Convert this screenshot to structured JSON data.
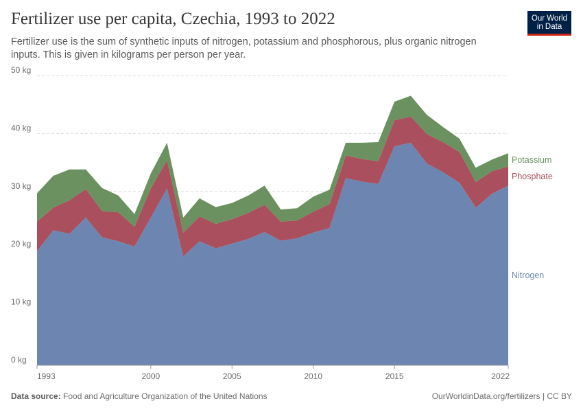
{
  "header": {
    "title": "Fertilizer use per capita, Czechia, 1993 to 2022",
    "subtitle": "Fertilizer use is the sum of synthetic inputs of nitrogen, potassium and phosphorous, plus organic nitrogen inputs. This is given in kilograms per person per year."
  },
  "logo": {
    "line1": "Our World",
    "line2": "in Data"
  },
  "footer": {
    "source_label": "Data source:",
    "source_text": "Food and Agriculture Organization of the United Nations",
    "url": "OurWorldinData.org/fertilizers | CC BY"
  },
  "colors": {
    "nitrogen": "#6d86b1",
    "phosphate": "#a94f5d",
    "potassium": "#6c9160",
    "grid": "#dddddd",
    "axis_text": "#6b6b6b"
  },
  "chart_data": {
    "type": "area",
    "stacked": true,
    "x": [
      1993,
      1994,
      1995,
      1996,
      1997,
      1998,
      1999,
      2000,
      2001,
      2002,
      2003,
      2004,
      2005,
      2006,
      2007,
      2008,
      2009,
      2010,
      2011,
      2012,
      2013,
      2014,
      2015,
      2016,
      2017,
      2018,
      2019,
      2020,
      2021,
      2022
    ],
    "xticks": [
      "1993",
      "2000",
      "2005",
      "2010",
      "2015",
      "2022"
    ],
    "ylim": [
      0,
      50
    ],
    "yticks": [
      "0 kg",
      "10 kg",
      "20 kg",
      "30 kg",
      "40 kg",
      "50 kg"
    ],
    "grid": "horizontal dashed",
    "series": [
      {
        "name": "Nitrogen",
        "color": "#6d86b1",
        "values": [
          19.7,
          23.3,
          22.7,
          25.5,
          22.1,
          21.4,
          20.5,
          25.5,
          30.5,
          18.8,
          21.4,
          20.2,
          21.0,
          21.8,
          23.0,
          21.5,
          21.9,
          22.9,
          23.7,
          32.3,
          31.7,
          31.3,
          37.8,
          38.4,
          34.8,
          33.3,
          31.5,
          27.2,
          29.6,
          31.0
        ]
      },
      {
        "name": "Phosphate",
        "color": "#a94f5d",
        "values": [
          5.1,
          3.9,
          5.8,
          4.9,
          4.5,
          5.0,
          3.4,
          5.0,
          4.9,
          4.1,
          4.3,
          4.2,
          4.2,
          4.5,
          4.7,
          3.3,
          3.1,
          3.6,
          4.1,
          3.9,
          3.9,
          3.9,
          4.5,
          4.5,
          5.1,
          5.2,
          5.3,
          4.4,
          3.9,
          3.3
        ]
      },
      {
        "name": "Potassium",
        "color": "#6c9160",
        "values": [
          4.9,
          5.5,
          5.3,
          3.4,
          4.0,
          2.9,
          2.2,
          2.6,
          3.0,
          2.6,
          3.1,
          2.9,
          2.8,
          3.0,
          3.3,
          2.1,
          2.1,
          2.6,
          2.5,
          2.2,
          2.8,
          3.3,
          3.2,
          3.6,
          3.3,
          2.6,
          2.3,
          2.5,
          2.0,
          2.3
        ]
      }
    ]
  }
}
